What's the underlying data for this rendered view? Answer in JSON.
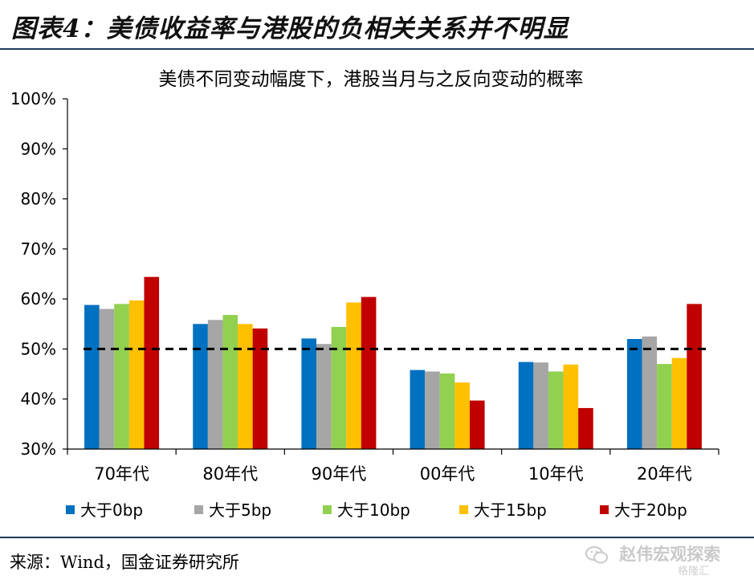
{
  "header": {
    "title": "图表4：美债收益率与港股的负相关关系并不明显"
  },
  "chart_data": {
    "type": "bar",
    "title": "美债不同变动幅度下，港股当月与之反向变动的概率",
    "categories": [
      "70年代",
      "80年代",
      "90年代",
      "00年代",
      "10年代",
      "20年代"
    ],
    "series": [
      {
        "name": "大于0bp",
        "color": "#0070c0",
        "values": [
          58.8,
          55.0,
          52.1,
          45.8,
          47.4,
          52.0
        ]
      },
      {
        "name": "大于5bp",
        "color": "#a6a6a6",
        "values": [
          58.0,
          55.8,
          51.0,
          45.5,
          47.3,
          52.5
        ]
      },
      {
        "name": "大于10bp",
        "color": "#92d050",
        "values": [
          59.0,
          56.8,
          54.4,
          45.1,
          45.5,
          47.0
        ]
      },
      {
        "name": "大于15bp",
        "color": "#ffc000",
        "values": [
          59.7,
          55.0,
          59.3,
          43.3,
          46.9,
          48.2
        ]
      },
      {
        "name": "大于20bp",
        "color": "#c00000",
        "values": [
          64.4,
          54.1,
          60.4,
          39.7,
          38.2,
          59.0
        ]
      }
    ],
    "ylim": [
      30,
      100
    ],
    "yticks": [
      "30%",
      "40%",
      "50%",
      "60%",
      "70%",
      "80%",
      "90%",
      "100%"
    ],
    "reference_line": 50,
    "legend": "bottom"
  },
  "footer": {
    "source": "来源：Wind，国金证券研究所",
    "watermark": "赵伟宏观探索",
    "watermark_icon": "wechat-icon",
    "corner_mark": "格隆汇"
  }
}
